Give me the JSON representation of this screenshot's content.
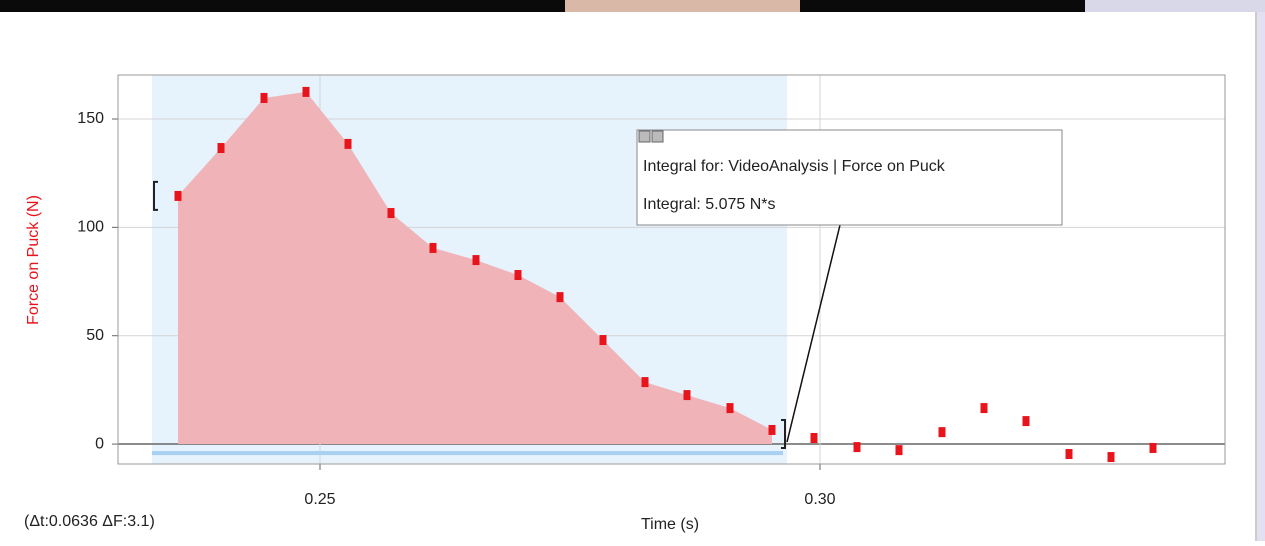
{
  "chart_data": {
    "type": "scatter",
    "x_label": "Time (s)",
    "y_label": "Force on Puck (N)",
    "x": [
      0.2358,
      0.2401,
      0.2444,
      0.2486,
      0.2528,
      0.2571,
      0.2613,
      0.2656,
      0.2698,
      0.274,
      0.2783,
      0.2825,
      0.2867,
      0.291,
      0.2952,
      0.2994,
      0.3037,
      0.3079,
      0.3122,
      0.3164,
      0.3206,
      0.3249,
      0.3291,
      0.3333
    ],
    "values": [
      114.5,
      136.6,
      159.7,
      162.5,
      138.5,
      106.6,
      90.5,
      84.9,
      78,
      67.8,
      48,
      28.6,
      22.6,
      16.6,
      6.5,
      2.8,
      -1.4,
      -2.8,
      5.5,
      16.6,
      10.6,
      -4.6,
      -6,
      -1.8
    ],
    "color": "#e8141b",
    "area_color": "#f0b4b8",
    "selection": [
      0.2332,
      0.2967
    ],
    "selection_color": "#e6f2fc",
    "xlim": [
      0.2298,
      0.3405
    ],
    "ylim": [
      -9.2,
      170.3
    ],
    "xticks": [
      0.25,
      {
        "value": 0.3,
        "label": "0.30"
      }
    ],
    "yticks": [
      0,
      50,
      100,
      150
    ],
    "grid": true,
    "annotation": [
      "Integral for: VideoAnalysis | Force on Puck",
      "Integral: 5.075 N*s"
    ],
    "stats_label": "(Δt:0.0636 ΔF:3.1)"
  }
}
